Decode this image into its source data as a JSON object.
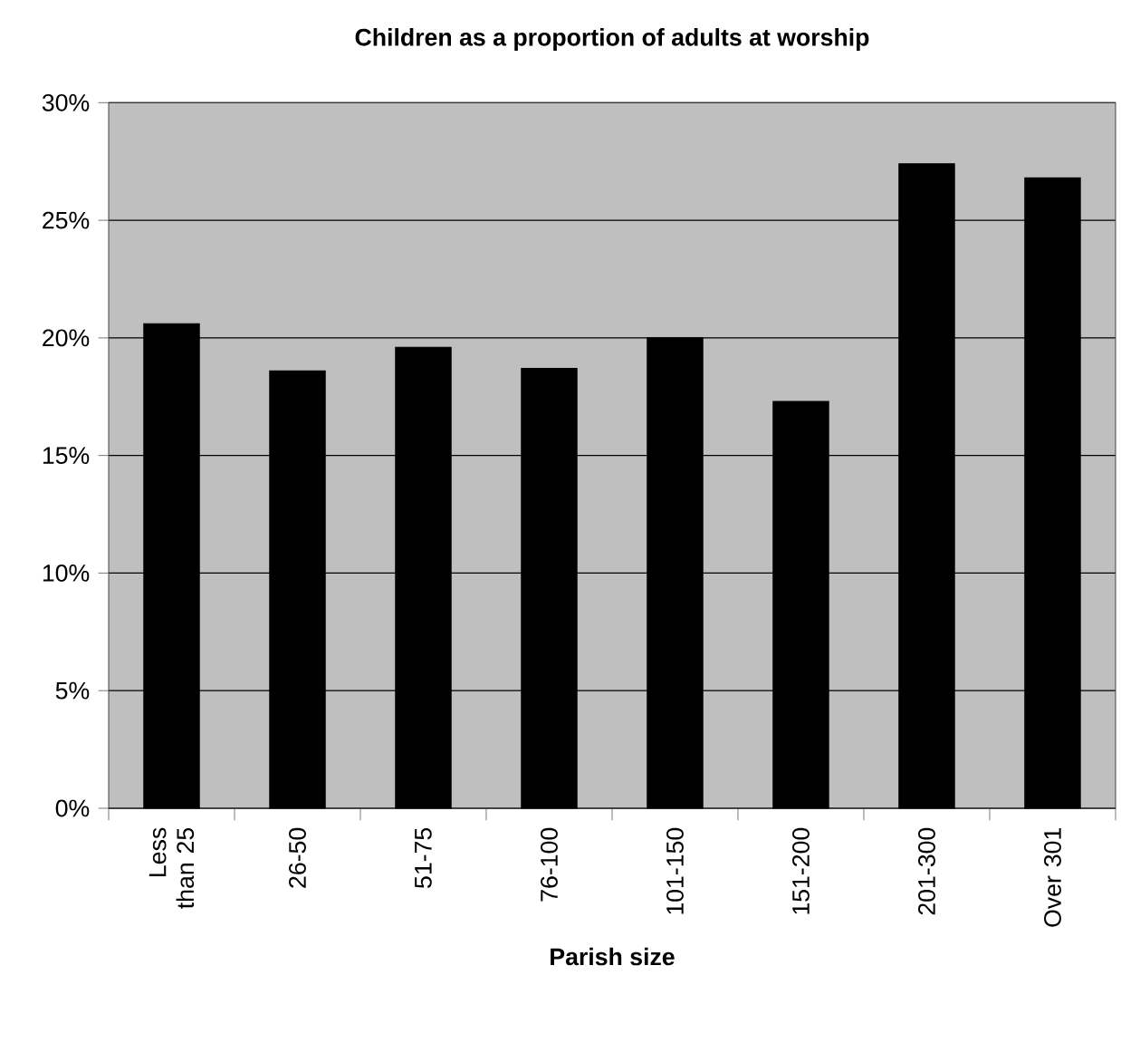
{
  "chart_data": {
    "type": "bar",
    "title": "Children as a proportion of adults at worship",
    "xlabel": "Parish size",
    "categories": [
      "Less than 25",
      "26-50",
      "51-75",
      "76-100",
      "101-150",
      "151-200",
      "201-300",
      "Over 301"
    ],
    "values": [
      20.6,
      18.6,
      19.6,
      18.7,
      20.0,
      17.3,
      27.4,
      26.8
    ],
    "color": "#000000",
    "ylim": [
      0,
      30
    ],
    "yticks": [
      {
        "value": 0,
        "label": "0%"
      },
      {
        "value": 5,
        "label": "5%"
      },
      {
        "value": 10,
        "label": "10%"
      },
      {
        "value": 15,
        "label": "15%"
      },
      {
        "value": 20,
        "label": "20%"
      },
      {
        "value": 25,
        "label": "25%"
      },
      {
        "value": 30,
        "label": "30%"
      }
    ],
    "grid": "y"
  }
}
